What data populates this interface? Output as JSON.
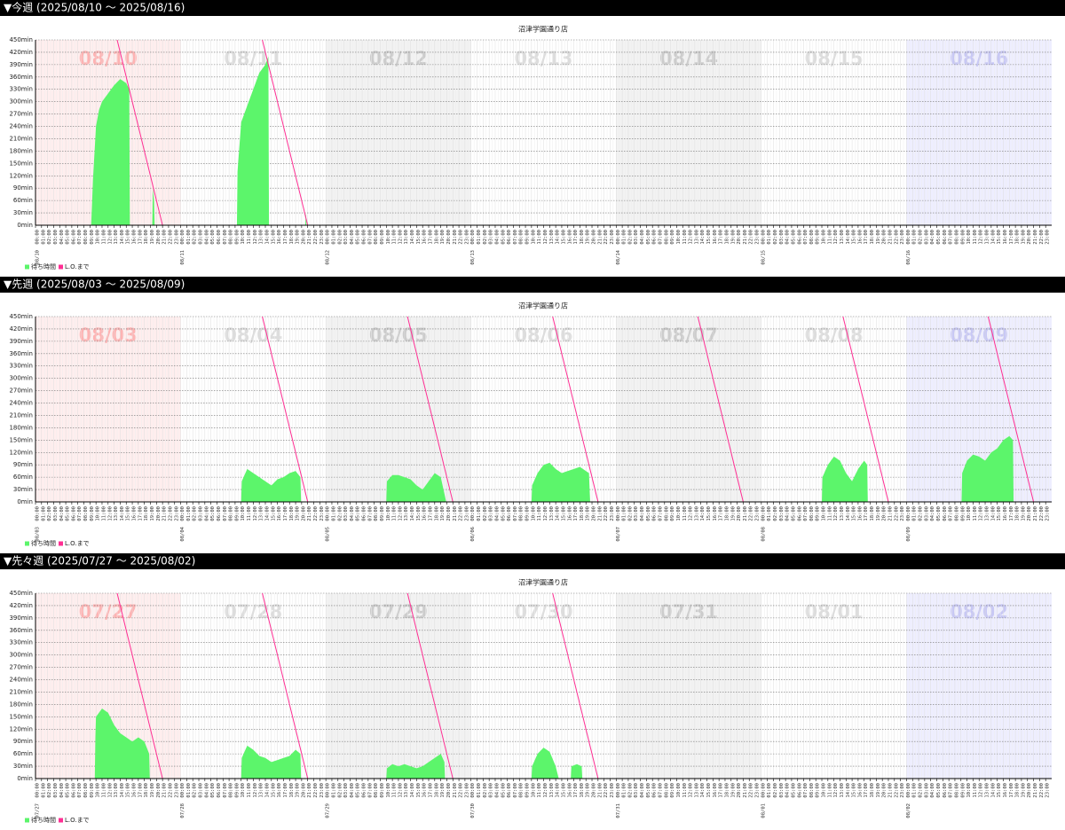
{
  "hours": [
    "00:00",
    "01:00",
    "02:00",
    "03:00",
    "04:00",
    "05:00",
    "06:00",
    "07:00",
    "08:00",
    "09:00",
    "10:00",
    "11:00",
    "12:00",
    "13:00",
    "14:00",
    "15:00",
    "16:00",
    "17:00",
    "18:00",
    "19:00",
    "20:00",
    "21:00",
    "22:00",
    "23:00"
  ],
  "chart_data": [
    {
      "type": "area",
      "header": "▼今週 (2025/08/10 〜 2025/08/16)",
      "title": "沼津学園通り店",
      "ylim": [
        0,
        450
      ],
      "xlim": [
        0,
        24
      ],
      "yticks": [
        {
          "value": 0,
          "label": "0min"
        },
        {
          "value": 30,
          "label": "30min"
        },
        {
          "value": 60,
          "label": "60min"
        },
        {
          "value": 90,
          "label": "90min"
        },
        {
          "value": 120,
          "label": "120min"
        },
        {
          "value": 150,
          "label": "150min"
        },
        {
          "value": 180,
          "label": "180min"
        },
        {
          "value": 210,
          "label": "210min"
        },
        {
          "value": 240,
          "label": "240min"
        },
        {
          "value": 270,
          "label": "270min"
        },
        {
          "value": 300,
          "label": "300min"
        },
        {
          "value": 330,
          "label": "330min"
        },
        {
          "value": 360,
          "label": "360min"
        },
        {
          "value": 390,
          "label": "390min"
        },
        {
          "value": 420,
          "label": "420min"
        },
        {
          "value": 450,
          "label": "450min"
        }
      ],
      "series": [
        {
          "name": "待ち時間",
          "color": "#5cf56b"
        },
        {
          "name": "L.O.まで",
          "color": "#ff2e93"
        }
      ],
      "days": [
        {
          "date": "08/10",
          "wait_x": [
            9.2,
            9.5,
            10,
            10.5,
            11,
            12,
            13,
            14,
            15,
            15.5,
            15.6,
            null,
            19.3,
            19.4,
            19.6,
            19.7
          ],
          "wait": [
            0,
            110,
            240,
            280,
            300,
            320,
            340,
            355,
            345,
            330,
            0,
            null,
            0,
            90,
            60,
            0
          ],
          "lo_x": [
            13.5,
            21
          ],
          "lo": [
            450,
            0
          ]
        },
        {
          "date": "08/11",
          "wait_x": [
            9.3,
            9.4,
            10,
            11,
            12,
            13,
            14,
            14.5,
            14.6,
            null,
            20.6,
            20.7,
            20.8
          ],
          "wait": [
            0,
            130,
            250,
            290,
            330,
            370,
            390,
            410,
            0,
            null,
            0,
            30,
            0
          ],
          "lo_x": [
            13.5,
            21
          ],
          "lo": [
            450,
            0
          ]
        },
        {
          "date": "08/12"
        },
        {
          "date": "08/13"
        },
        {
          "date": "08/14"
        },
        {
          "date": "08/15"
        },
        {
          "date": "08/16"
        }
      ]
    },
    {
      "type": "area",
      "header": "▼先週 (2025/08/03 〜 2025/08/09)",
      "title": "沼津学園通り店",
      "ylim": [
        0,
        450
      ],
      "xlim": [
        0,
        24
      ],
      "yticks": [
        {
          "value": 0,
          "label": "0min"
        },
        {
          "value": 30,
          "label": "30min"
        },
        {
          "value": 60,
          "label": "60min"
        },
        {
          "value": 90,
          "label": "90min"
        },
        {
          "value": 120,
          "label": "120min"
        },
        {
          "value": 150,
          "label": "150min"
        },
        {
          "value": 180,
          "label": "180min"
        },
        {
          "value": 210,
          "label": "210min"
        },
        {
          "value": 240,
          "label": "240min"
        },
        {
          "value": 270,
          "label": "270min"
        },
        {
          "value": 300,
          "label": "300min"
        },
        {
          "value": 330,
          "label": "330min"
        },
        {
          "value": 360,
          "label": "360min"
        },
        {
          "value": 390,
          "label": "390min"
        },
        {
          "value": 420,
          "label": "420min"
        },
        {
          "value": 450,
          "label": "450min"
        }
      ],
      "series": [
        {
          "name": "待ち時間",
          "color": "#5cf56b"
        },
        {
          "name": "L.O.まで",
          "color": "#ff2e93"
        }
      ],
      "days": [
        {
          "date": "08/03"
        },
        {
          "date": "08/04",
          "wait_x": [
            10,
            10.1,
            11,
            12,
            13,
            14,
            15,
            16,
            17,
            18,
            19,
            19.8,
            19.9
          ],
          "wait": [
            0,
            50,
            80,
            70,
            60,
            50,
            40,
            55,
            60,
            70,
            75,
            60,
            0
          ],
          "lo_x": [
            13.5,
            21
          ],
          "lo": [
            450,
            0
          ]
        },
        {
          "date": "08/05",
          "wait_x": [
            10,
            10.1,
            11,
            12,
            13,
            14,
            15,
            16,
            17,
            18,
            19,
            19.9
          ],
          "wait": [
            0,
            50,
            65,
            65,
            60,
            55,
            40,
            30,
            50,
            70,
            60,
            0
          ],
          "lo_x": [
            13.5,
            21
          ],
          "lo": [
            450,
            0
          ]
        },
        {
          "date": "08/06",
          "wait_x": [
            10,
            10.1,
            11,
            12,
            13,
            14,
            15,
            16,
            17,
            18,
            19.5,
            19.7
          ],
          "wait": [
            0,
            40,
            70,
            90,
            95,
            80,
            70,
            75,
            80,
            85,
            70,
            0
          ],
          "lo_x": [
            13.5,
            21
          ],
          "lo": [
            450,
            0
          ]
        },
        {
          "date": "08/07",
          "lo_x": [
            13.5,
            21
          ],
          "lo": [
            450,
            0
          ]
        },
        {
          "date": "08/08",
          "wait_x": [
            10,
            10.1,
            11,
            12,
            13,
            14,
            15,
            16,
            17,
            17.5,
            17.6
          ],
          "wait": [
            0,
            60,
            90,
            110,
            100,
            70,
            50,
            80,
            100,
            90,
            0
          ],
          "lo_x": [
            13.5,
            21
          ],
          "lo": [
            450,
            0
          ]
        },
        {
          "date": "08/09",
          "wait_x": [
            9.1,
            9.2,
            10,
            11,
            12,
            13,
            14,
            15,
            16,
            17,
            17.6,
            17.7
          ],
          "wait": [
            0,
            70,
            100,
            115,
            110,
            100,
            120,
            130,
            150,
            160,
            150,
            0
          ],
          "lo_x": [
            13.5,
            21
          ],
          "lo": [
            450,
            0
          ]
        }
      ]
    },
    {
      "type": "area",
      "header": "▼先々週 (2025/07/27 〜 2025/08/02)",
      "title": "沼津学園通り店",
      "ylim": [
        0,
        450
      ],
      "xlim": [
        0,
        24
      ],
      "yticks": [
        {
          "value": 0,
          "label": "0min"
        },
        {
          "value": 30,
          "label": "30min"
        },
        {
          "value": 60,
          "label": "60min"
        },
        {
          "value": 90,
          "label": "90min"
        },
        {
          "value": 120,
          "label": "120min"
        },
        {
          "value": 150,
          "label": "150min"
        },
        {
          "value": 180,
          "label": "180min"
        },
        {
          "value": 210,
          "label": "210min"
        },
        {
          "value": 240,
          "label": "240min"
        },
        {
          "value": 270,
          "label": "270min"
        },
        {
          "value": 300,
          "label": "300min"
        },
        {
          "value": 330,
          "label": "330min"
        },
        {
          "value": 360,
          "label": "360min"
        },
        {
          "value": 390,
          "label": "390min"
        },
        {
          "value": 420,
          "label": "420min"
        },
        {
          "value": 450,
          "label": "450min"
        }
      ],
      "series": [
        {
          "name": "待ち時間",
          "color": "#5cf56b"
        },
        {
          "name": "L.O.まで",
          "color": "#ff2e93"
        }
      ],
      "days": [
        {
          "date": "07/27",
          "wait_x": [
            9.8,
            9.9,
            10,
            11,
            12,
            13,
            14,
            15,
            16,
            17,
            18,
            18.8,
            18.9
          ],
          "wait": [
            0,
            100,
            150,
            170,
            160,
            130,
            110,
            100,
            90,
            100,
            90,
            60,
            0
          ],
          "lo_x": [
            13.5,
            21
          ],
          "lo": [
            450,
            0
          ]
        },
        {
          "date": "07/28",
          "wait_x": [
            10,
            10.1,
            11,
            12,
            13,
            14,
            15,
            16,
            17,
            18,
            19,
            19.8,
            19.9
          ],
          "wait": [
            0,
            50,
            80,
            70,
            55,
            50,
            40,
            45,
            50,
            55,
            70,
            60,
            0
          ],
          "lo_x": [
            13.5,
            21
          ],
          "lo": [
            450,
            0
          ]
        },
        {
          "date": "07/29",
          "wait_x": [
            10,
            10.1,
            11,
            12,
            13,
            14,
            15,
            16,
            17,
            18,
            19,
            19.6,
            19.7
          ],
          "wait": [
            0,
            25,
            35,
            30,
            35,
            30,
            25,
            30,
            40,
            50,
            60,
            40,
            0
          ],
          "lo_x": [
            13.5,
            21
          ],
          "lo": [
            450,
            0
          ]
        },
        {
          "date": "07/30",
          "wait_x": [
            10,
            10.1,
            11,
            12,
            13,
            14,
            14.5,
            null,
            16.5,
            16.6,
            17.5,
            18.3,
            18.4
          ],
          "wait": [
            0,
            30,
            60,
            75,
            65,
            30,
            0,
            null,
            0,
            30,
            35,
            30,
            0
          ],
          "lo_x": [
            13.5,
            21
          ],
          "lo": [
            450,
            0
          ]
        },
        {
          "date": "07/31"
        },
        {
          "date": "08/01"
        },
        {
          "date": "08/02"
        }
      ]
    }
  ]
}
